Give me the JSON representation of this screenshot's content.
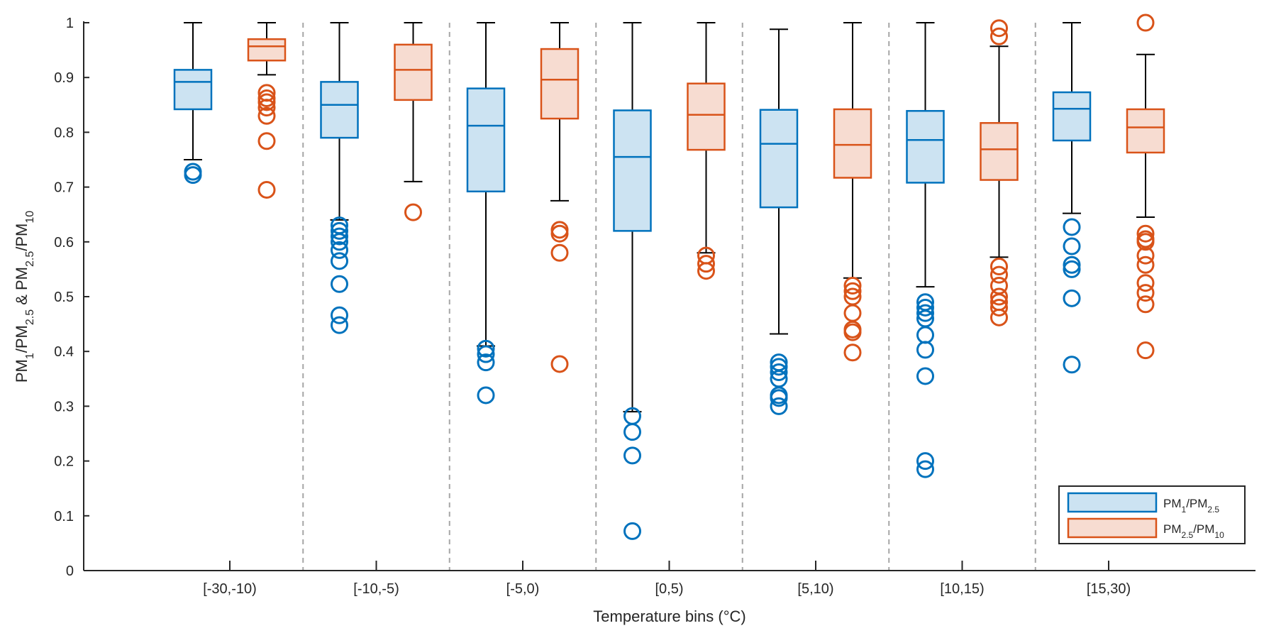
{
  "chart_data": {
    "type": "box",
    "title": "",
    "xlabel": "Temperature bins (°C)",
    "ylabel": {
      "parts": [
        "PM",
        "1",
        "/PM",
        "2.5",
        " & PM",
        "2.5",
        "/PM",
        "10"
      ]
    },
    "ylim": [
      0,
      1
    ],
    "yticks": [
      "0",
      "0.1",
      "0.2",
      "0.3",
      "0.4",
      "0.5",
      "0.6",
      "0.7",
      "0.8",
      "0.9",
      "1"
    ],
    "categories": [
      "[-30,-10)",
      "[-10,-5)",
      "[-5,0)",
      "[0,5)",
      "[5,10)",
      "[10,15)",
      "[15,30)"
    ],
    "grid": "vertical dashed separators between bins",
    "legend_position": "bottom-right",
    "series": [
      {
        "name": "PM1/PM2.5",
        "legend_parts": [
          "PM",
          "1",
          "/PM",
          "2.5"
        ],
        "color": "#0072BD",
        "fill": "#CCE3F2",
        "boxes": [
          {
            "whisker_low": 0.75,
            "q1": 0.842,
            "median": 0.892,
            "q3": 0.914,
            "whisker_high": 1.0,
            "outliers": [
              0.722,
              0.728
            ]
          },
          {
            "whisker_low": 0.64,
            "q1": 0.79,
            "median": 0.85,
            "q3": 0.892,
            "whisker_high": 1.0,
            "outliers": [
              0.63,
              0.62,
              0.61,
              0.6,
              0.585,
              0.565,
              0.523,
              0.466,
              0.448
            ]
          },
          {
            "whisker_low": 0.41,
            "q1": 0.692,
            "median": 0.812,
            "q3": 0.88,
            "whisker_high": 1.0,
            "outliers": [
              0.405,
              0.395,
              0.38,
              0.32
            ]
          },
          {
            "whisker_low": 0.29,
            "q1": 0.62,
            "median": 0.755,
            "q3": 0.84,
            "whisker_high": 1.0,
            "outliers": [
              0.282,
              0.253,
              0.21,
              0.072
            ]
          },
          {
            "whisker_low": 0.432,
            "q1": 0.663,
            "median": 0.779,
            "q3": 0.841,
            "whisker_high": 0.988,
            "outliers": [
              0.38,
              0.372,
              0.362,
              0.35,
              0.32,
              0.315,
              0.3
            ]
          },
          {
            "whisker_low": 0.518,
            "q1": 0.708,
            "median": 0.786,
            "q3": 0.839,
            "whisker_high": 1.0,
            "outliers": [
              0.49,
              0.48,
              0.47,
              0.46,
              0.43,
              0.403,
              0.355,
              0.2,
              0.185
            ]
          },
          {
            "whisker_low": 0.652,
            "q1": 0.785,
            "median": 0.843,
            "q3": 0.873,
            "whisker_high": 1.0,
            "outliers": [
              0.627,
              0.592,
              0.558,
              0.55,
              0.497,
              0.376
            ]
          }
        ]
      },
      {
        "name": "PM2.5/PM10",
        "legend_parts": [
          "PM",
          "2.5",
          "/PM",
          "10"
        ],
        "color": "#D95319",
        "fill": "#F7DCD1",
        "boxes": [
          {
            "whisker_low": 0.905,
            "q1": 0.931,
            "median": 0.957,
            "q3": 0.97,
            "whisker_high": 1.0,
            "outliers": [
              0.872,
              0.862,
              0.855,
              0.845,
              0.83,
              0.784,
              0.695
            ]
          },
          {
            "whisker_low": 0.71,
            "q1": 0.859,
            "median": 0.914,
            "q3": 0.96,
            "whisker_high": 1.0,
            "outliers": [
              0.654
            ]
          },
          {
            "whisker_low": 0.675,
            "q1": 0.825,
            "median": 0.896,
            "q3": 0.952,
            "whisker_high": 1.0,
            "outliers": [
              0.622,
              0.615,
              0.58,
              0.377
            ]
          },
          {
            "whisker_low": 0.58,
            "q1": 0.768,
            "median": 0.832,
            "q3": 0.889,
            "whisker_high": 1.0,
            "outliers": [
              0.575,
              0.56,
              0.547
            ]
          },
          {
            "whisker_low": 0.534,
            "q1": 0.717,
            "median": 0.777,
            "q3": 0.842,
            "whisker_high": 1.0,
            "outliers": [
              0.52,
              0.51,
              0.5,
              0.47,
              0.44,
              0.435,
              0.398
            ]
          },
          {
            "whisker_low": 0.572,
            "q1": 0.713,
            "median": 0.769,
            "q3": 0.817,
            "whisker_high": 0.957,
            "outliers": [
              0.99,
              0.975,
              0.555,
              0.54,
              0.52,
              0.5,
              0.49,
              0.48,
              0.462
            ]
          },
          {
            "whisker_low": 0.645,
            "q1": 0.763,
            "median": 0.809,
            "q3": 0.842,
            "whisker_high": 0.942,
            "outliers": [
              1.0,
              0.615,
              0.605,
              0.6,
              0.575,
              0.558,
              0.525,
              0.507,
              0.486,
              0.402
            ]
          }
        ]
      }
    ]
  }
}
